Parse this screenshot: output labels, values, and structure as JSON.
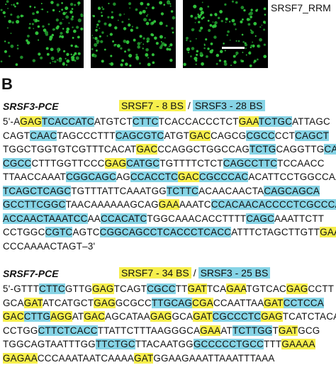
{
  "panel_a": {
    "label": "SRSF7_RRM"
  },
  "panel_b": {
    "label": "B",
    "sections": [
      {
        "title": "SRSF3-PCE",
        "legend": [
          {
            "text": "SRSF7 - 8 BS",
            "color": "#f7ef4c"
          },
          {
            "text": "/"
          },
          {
            "text": "SRSF3 - 28 BS",
            "color": "#86d4e6"
          }
        ],
        "lines": [
          [
            "5'-A",
            {
              "text": "GAG",
              "color": "#f7ef4c"
            },
            {
              "text": "TCACCATC",
              "color": "#86d4e6"
            },
            "ATGTCT",
            {
              "text": "CTTC",
              "color": "#86d4e6"
            },
            "TCACCACCCTCT",
            {
              "text": "GAA",
              "color": "#f7ef4c"
            },
            {
              "text": "TCTGC",
              "color": "#86d4e6"
            },
            "ATTAGC"
          ],
          [
            "CAGT",
            {
              "text": "CAAC",
              "color": "#86d4e6"
            },
            "TAGCCCTTT",
            {
              "text": "CAGCGTC",
              "color": "#86d4e6"
            },
            "ATGT",
            {
              "text": "GAC",
              "color": "#f7ef4c"
            },
            "CAGCG",
            {
              "text": "CGCC",
              "color": "#86d4e6"
            },
            "CCT",
            {
              "text": "CAGCT",
              "color": "#86d4e6"
            }
          ],
          [
            "TGGCTGGTGTCGTTTCACAT",
            {
              "text": "GAC",
              "color": "#f7ef4c"
            },
            "CCAGGCTGGCCAG",
            {
              "text": "TCTG",
              "color": "#86d4e6"
            },
            "CAGGTTG",
            {
              "text": "CAC",
              "color": "#86d4e6"
            }
          ],
          [
            {
              "text": "CGCC",
              "color": "#86d4e6"
            },
            "CTTTGGTTCCC",
            {
              "text": "GAG",
              "color": "#f7ef4c"
            },
            {
              "text": "CATGC",
              "color": "#86d4e6"
            },
            "TGTTTTCTCT",
            {
              "text": "CAGCCTTC",
              "color": "#86d4e6"
            },
            "TCCAACC"
          ],
          [
            "TTAACCAAAT",
            {
              "text": "CGGCAGC",
              "color": "#86d4e6"
            },
            "AG",
            {
              "text": "CCACCTC",
              "color": "#86d4e6"
            },
            {
              "text": "GAC",
              "color": "#f7ef4c"
            },
            {
              "text": "CGCCCAC",
              "color": "#86d4e6"
            },
            "ACATTCCTGGCCAA"
          ],
          [
            {
              "text": "TCAGCTCAGC",
              "color": "#86d4e6"
            },
            "TGTTTATTCAAATGG",
            {
              "text": "TCTTC",
              "color": "#86d4e6"
            },
            "ACAACAACTA",
            {
              "text": "CAGCAGCA",
              "color": "#86d4e6"
            }
          ],
          [
            {
              "text": "GCCTTCGGC",
              "color": "#86d4e6"
            },
            "TAACAAAAAAGCAG",
            {
              "text": "GAA",
              "color": "#f7ef4c"
            },
            "AAATC",
            {
              "text": "CCACAACACCCCTCGCCCA",
              "color": "#86d4e6"
            }
          ],
          [
            {
              "text": "ACCAACTAAATCC",
              "color": "#86d4e6"
            },
            "AA",
            {
              "text": "CCACATC",
              "color": "#86d4e6"
            },
            "TGGCAAACACCTTTT",
            {
              "text": "CAGC",
              "color": "#86d4e6"
            },
            "AAATTCTT"
          ],
          [
            "CCTGGC",
            {
              "text": "CGTC",
              "color": "#86d4e6"
            },
            "AGTC",
            {
              "text": "CGGCAGCCTCACCCTCACC",
              "color": "#86d4e6"
            },
            "ATTTCTAGCTTGTT",
            {
              "text": "GAA",
              "color": "#f7ef4c"
            },
            "A"
          ],
          [
            "CCCAAAACTAGT–3'"
          ]
        ]
      },
      {
        "title": "SRSF7-PCE",
        "legend": [
          {
            "text": "SRSF7 - 34 BS",
            "color": "#f7ef4c"
          },
          {
            "text": "/"
          },
          {
            "text": "SRSF3 - 25 BS",
            "color": "#86d4e6"
          }
        ],
        "lines": [
          [
            "5'-GTTT",
            {
              "text": "CTTC",
              "color": "#86d4e6"
            },
            "GTTG",
            {
              "text": "GAG",
              "color": "#f7ef4c"
            },
            "TCAGT",
            {
              "text": "CGCC",
              "color": "#86d4e6"
            },
            "TT",
            {
              "text": "GAT",
              "color": "#f7ef4c"
            },
            "TCA",
            {
              "text": "GAA",
              "color": "#f7ef4c"
            },
            "TGTCAC",
            {
              "text": "GAG",
              "color": "#f7ef4c"
            },
            "CCTT"
          ],
          [
            "GCA",
            {
              "text": "GAT",
              "color": "#f7ef4c"
            },
            "ATCATGCT",
            {
              "text": "GAG",
              "color": "#f7ef4c"
            },
            "GCGCC",
            {
              "text": "TTGCAG",
              "color": "#86d4e6"
            },
            {
              "text": "CGA",
              "color": "#f7ef4c"
            },
            "CCAATTAA",
            {
              "text": "GAT",
              "color": "#f7ef4c"
            },
            {
              "text": "CCTCCA",
              "color": "#86d4e6"
            }
          ],
          [
            {
              "text": "GAC",
              "color": "#f7ef4c"
            },
            {
              "text": "CTTG",
              "color": "#86d4e6"
            },
            {
              "text": "AGG",
              "color": "#f7ef4c"
            },
            "AT",
            {
              "text": "GAC",
              "color": "#f7ef4c"
            },
            "AGCATAA",
            {
              "text": "GAG",
              "color": "#f7ef4c"
            },
            "GCA",
            {
              "text": "GAT",
              "color": "#f7ef4c"
            },
            {
              "text": "CGCCCTC",
              "color": "#86d4e6"
            },
            {
              "text": "GAG",
              "color": "#f7ef4c"
            },
            "TCATCTACA"
          ],
          [
            "CCTGG",
            {
              "text": "CTTCTCACC",
              "color": "#86d4e6"
            },
            "TTATTCTTTAAGGGCA",
            {
              "text": "GAA",
              "color": "#f7ef4c"
            },
            "AT",
            {
              "text": "TCTTGG",
              "color": "#86d4e6"
            },
            "T",
            {
              "text": "GAT",
              "color": "#f7ef4c"
            },
            "GCG"
          ],
          [
            "TGGCAGTAATTTGG",
            {
              "text": "TTCTGC",
              "color": "#86d4e6"
            },
            "TTACAATGG",
            {
              "text": "GCCCCCTGCC",
              "color": "#86d4e6"
            },
            "TTT",
            {
              "text": "GAAAA",
              "color": "#f7ef4c"
            }
          ],
          [
            {
              "text": "GAGAA",
              "color": "#f7ef4c"
            },
            "CCCAAATAATCAAAA",
            {
              "text": "GAT",
              "color": "#f7ef4c"
            },
            "GGAAGAAATTAAATTTAAA"
          ]
        ]
      }
    ]
  }
}
